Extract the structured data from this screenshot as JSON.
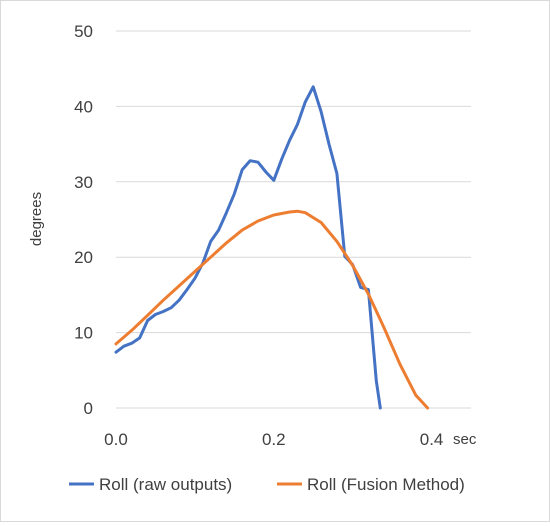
{
  "chart_data": {
    "type": "line",
    "title": "",
    "xlabel": "",
    "x_unit": "sec",
    "ylabel": "degrees",
    "xlim": [
      0,
      0.45
    ],
    "ylim": [
      0,
      50
    ],
    "x_ticks": [
      "0.0",
      "0.2",
      "0.4"
    ],
    "y_ticks": [
      "0",
      "10",
      "20",
      "30",
      "40",
      "50"
    ],
    "grid": "horizontal",
    "legend": "bottom",
    "series": [
      {
        "name": "Roll (raw outputs)",
        "color": "#4472c4",
        "x": [
          0.0,
          0.01,
          0.02,
          0.03,
          0.04,
          0.05,
          0.06,
          0.07,
          0.08,
          0.09,
          0.1,
          0.11,
          0.12,
          0.13,
          0.14,
          0.15,
          0.16,
          0.17,
          0.18,
          0.19,
          0.2,
          0.21,
          0.22,
          0.23,
          0.24,
          0.25,
          0.26,
          0.27,
          0.28,
          0.29,
          0.3,
          0.31,
          0.32,
          0.33,
          0.335
        ],
        "y": [
          7.4,
          8.2,
          8.6,
          9.3,
          11.6,
          12.4,
          12.8,
          13.3,
          14.3,
          15.7,
          17.2,
          19.2,
          22.1,
          23.6,
          25.9,
          28.4,
          31.6,
          32.8,
          32.6,
          31.3,
          30.2,
          33.0,
          35.5,
          37.6,
          40.6,
          42.6,
          39.3,
          35.0,
          31.1,
          20.1,
          19.0,
          16.0,
          15.7,
          3.6,
          0.0
        ]
      },
      {
        "name": "Roll (Fusion Method)",
        "color": "#ed7d31",
        "x": [
          0.0,
          0.02,
          0.04,
          0.06,
          0.08,
          0.1,
          0.12,
          0.14,
          0.16,
          0.18,
          0.2,
          0.22,
          0.23,
          0.24,
          0.26,
          0.28,
          0.3,
          0.32,
          0.34,
          0.36,
          0.38,
          0.395
        ],
        "y": [
          8.5,
          10.3,
          12.3,
          14.3,
          16.2,
          18.1,
          20.0,
          21.9,
          23.6,
          24.8,
          25.6,
          26.0,
          26.1,
          25.9,
          24.6,
          22.1,
          18.9,
          15.1,
          10.6,
          5.8,
          1.7,
          0.0
        ]
      }
    ]
  }
}
